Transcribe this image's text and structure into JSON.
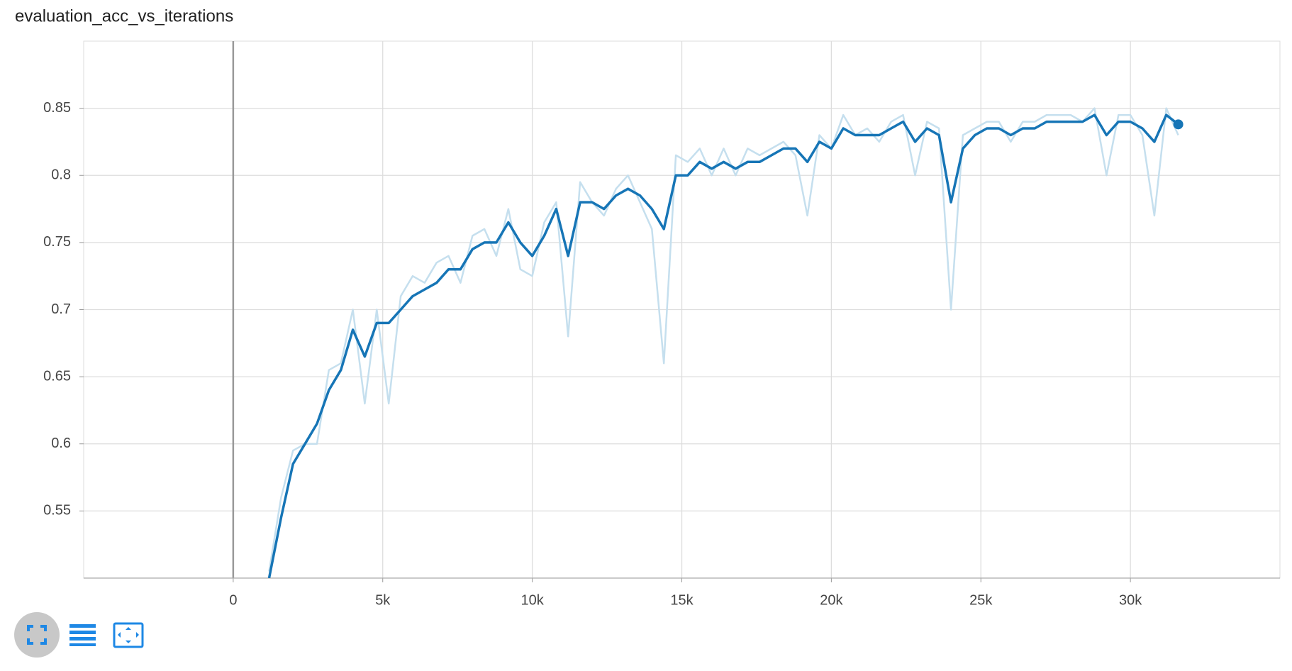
{
  "chart_data": {
    "type": "line",
    "title": "evaluation_acc_vs_iterations",
    "x": [
      1200,
      1600,
      2000,
      2400,
      2800,
      3200,
      3600,
      4000,
      4400,
      4800,
      5200,
      5600,
      6000,
      6400,
      6800,
      7200,
      7600,
      8000,
      8400,
      8800,
      9200,
      9600,
      10000,
      10400,
      10800,
      11200,
      11600,
      12000,
      12400,
      12800,
      13200,
      13600,
      14000,
      14400,
      14800,
      15200,
      15600,
      16000,
      16400,
      16800,
      17200,
      17600,
      18000,
      18400,
      18800,
      19200,
      19600,
      20000,
      20400,
      20800,
      21200,
      21600,
      22000,
      22400,
      22800,
      23200,
      23600,
      24000,
      24400,
      24800,
      25200,
      25600,
      26000,
      26400,
      26800,
      27200,
      27600,
      28000,
      28400,
      28800,
      29200,
      29600,
      30000,
      30400,
      30800,
      31200,
      31600
    ],
    "series": [
      {
        "color": "#c5dfee",
        "values": [
          0.505,
          0.56,
          0.595,
          0.6,
          0.6,
          0.655,
          0.66,
          0.7,
          0.63,
          0.7,
          0.63,
          0.71,
          0.725,
          0.72,
          0.735,
          0.74,
          0.72,
          0.755,
          0.76,
          0.74,
          0.775,
          0.73,
          0.725,
          0.765,
          0.78,
          0.68,
          0.795,
          0.78,
          0.77,
          0.79,
          0.8,
          0.78,
          0.76,
          0.66,
          0.815,
          0.81,
          0.82,
          0.8,
          0.82,
          0.8,
          0.82,
          0.815,
          0.82,
          0.825,
          0.815,
          0.77,
          0.83,
          0.82,
          0.845,
          0.83,
          0.835,
          0.825,
          0.84,
          0.845,
          0.8,
          0.84,
          0.835,
          0.7,
          0.83,
          0.835,
          0.84,
          0.84,
          0.825,
          0.84,
          0.84,
          0.845,
          0.845,
          0.845,
          0.84,
          0.85,
          0.8,
          0.845,
          0.845,
          0.83,
          0.77,
          0.85,
          0.83
        ]
      },
      {
        "color": "#1675b6",
        "values": [
          0.5,
          0.545,
          0.585,
          0.6,
          0.615,
          0.64,
          0.655,
          0.685,
          0.665,
          0.69,
          0.69,
          0.7,
          0.71,
          0.715,
          0.72,
          0.73,
          0.73,
          0.745,
          0.75,
          0.75,
          0.765,
          0.75,
          0.74,
          0.755,
          0.775,
          0.74,
          0.78,
          0.78,
          0.775,
          0.785,
          0.79,
          0.785,
          0.775,
          0.76,
          0.8,
          0.8,
          0.81,
          0.805,
          0.81,
          0.805,
          0.81,
          0.81,
          0.815,
          0.82,
          0.82,
          0.81,
          0.825,
          0.82,
          0.835,
          0.83,
          0.83,
          0.83,
          0.835,
          0.84,
          0.825,
          0.835,
          0.83,
          0.78,
          0.82,
          0.83,
          0.835,
          0.835,
          0.83,
          0.835,
          0.835,
          0.84,
          0.84,
          0.84,
          0.84,
          0.845,
          0.83,
          0.84,
          0.84,
          0.835,
          0.825,
          0.845,
          0.838
        ]
      }
    ],
    "xlim": [
      -5000,
      35000
    ],
    "ylim": [
      0.5,
      0.9
    ],
    "xticks": [
      {
        "value": 0,
        "label": "0"
      },
      {
        "value": 5000,
        "label": "5k"
      },
      {
        "value": 10000,
        "label": "10k"
      },
      {
        "value": 15000,
        "label": "15k"
      },
      {
        "value": 20000,
        "label": "20k"
      },
      {
        "value": 25000,
        "label": "25k"
      },
      {
        "value": 30000,
        "label": "30k"
      }
    ],
    "yticks": [
      0.55,
      0.6,
      0.65,
      0.7,
      0.75,
      0.8,
      0.85
    ],
    "grid": true
  }
}
